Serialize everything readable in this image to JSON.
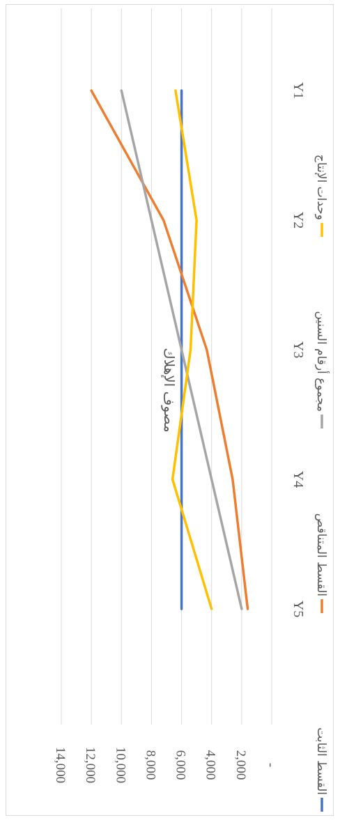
{
  "chart_data": {
    "type": "line",
    "title": "مصوف الإهلاك",
    "categories": [
      "Y1",
      "Y2",
      "Y3",
      "Y4",
      "Y5"
    ],
    "y_tick_labels": [
      "-",
      "2,000",
      "4,000",
      "6,000",
      "8,000",
      "10,000",
      "12,000",
      "14,000"
    ],
    "ylim": [
      0,
      14000
    ],
    "grid": true,
    "legend_position": "bottom",
    "orientation": "rotated-90-clockwise",
    "series": [
      {
        "name": "القسط الثابت",
        "color": "#4472C4",
        "values": [
          6000,
          6000,
          6000,
          6000,
          6000
        ]
      },
      {
        "name": "القسط المتناقص",
        "color": "#ED7D31",
        "values": [
          12000,
          7200,
          4320,
          2600,
          1600
        ]
      },
      {
        "name": "مجموع أرقام السنين",
        "color": "#A5A5A5",
        "values": [
          10000,
          8000,
          6000,
          4000,
          2000
        ]
      },
      {
        "name": "وحدات الإنتاج",
        "color": "#FFC000",
        "values": [
          6400,
          5000,
          5400,
          6600,
          4000
        ]
      }
    ]
  }
}
